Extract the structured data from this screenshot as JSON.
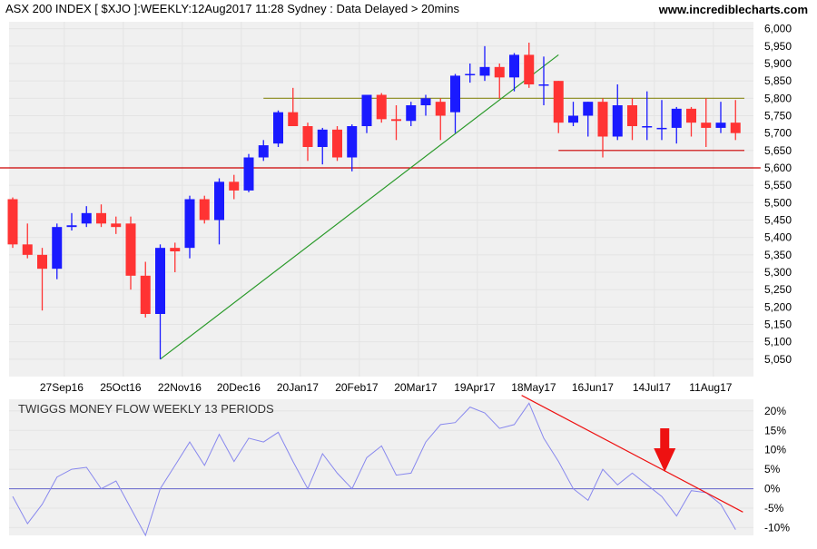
{
  "header": {
    "title": "ASX 200 INDEX [ $XJO ]:WEEKLY:12Aug2017 11:28 Sydney : Data Delayed > 20mins",
    "site": "www.incrediblecharts.com"
  },
  "colors": {
    "up": "#1a1aff",
    "down": "#ff3333",
    "grid": "#e4e4e4",
    "panel_bg": "#f0f0f0",
    "trend_green": "#2a9a2a",
    "support_red": "#cc0000",
    "resistance_olive": "#8a8a1a",
    "money_flow": "#8888ee",
    "arrow": "#ee1111"
  },
  "chart_data": [
    {
      "type": "candlestick",
      "title": "ASX 200 INDEX [ $XJO ]:WEEKLY:12Aug2017 11:28 Sydney : Data Delayed > 20mins",
      "ylim": [
        5000,
        6020
      ],
      "y_ticks": [
        "6,000",
        "5,950",
        "5,900",
        "5,850",
        "5,800",
        "5,750",
        "5,700",
        "5,650",
        "5,600",
        "5,550",
        "5,500",
        "5,450",
        "5,400",
        "5,350",
        "5,300",
        "5,250",
        "5,200",
        "5,150",
        "5,100",
        "5,050"
      ],
      "y_tick_values": [
        6000,
        5950,
        5900,
        5850,
        5800,
        5750,
        5700,
        5650,
        5600,
        5550,
        5500,
        5450,
        5400,
        5350,
        5300,
        5250,
        5200,
        5150,
        5100,
        5050
      ],
      "x_tick_labels": [
        "27Sep16",
        "25Oct16",
        "22Nov16",
        "20Dec16",
        "20Jan17",
        "20Feb17",
        "20Mar17",
        "19Apr17",
        "18May17",
        "16Jun17",
        "14Jul17",
        "11Aug17"
      ],
      "x_tick_index": [
        4,
        8,
        12,
        16,
        20,
        24,
        28,
        32,
        36,
        40,
        44,
        48
      ],
      "candles": [
        {
          "o": 5510,
          "h": 5515,
          "l": 5370,
          "c": 5380
        },
        {
          "o": 5380,
          "h": 5440,
          "l": 5340,
          "c": 5350
        },
        {
          "o": 5350,
          "h": 5370,
          "l": 5190,
          "c": 5310
        },
        {
          "o": 5310,
          "h": 5440,
          "l": 5280,
          "c": 5430
        },
        {
          "o": 5430,
          "h": 5470,
          "l": 5420,
          "c": 5435
        },
        {
          "o": 5440,
          "h": 5490,
          "l": 5430,
          "c": 5470
        },
        {
          "o": 5470,
          "h": 5495,
          "l": 5430,
          "c": 5440
        },
        {
          "o": 5440,
          "h": 5460,
          "l": 5410,
          "c": 5430
        },
        {
          "o": 5440,
          "h": 5460,
          "l": 5250,
          "c": 5290
        },
        {
          "o": 5290,
          "h": 5330,
          "l": 5170,
          "c": 5180
        },
        {
          "o": 5180,
          "h": 5380,
          "l": 5050,
          "c": 5370
        },
        {
          "o": 5370,
          "h": 5385,
          "l": 5300,
          "c": 5360
        },
        {
          "o": 5370,
          "h": 5520,
          "l": 5340,
          "c": 5510
        },
        {
          "o": 5510,
          "h": 5520,
          "l": 5440,
          "c": 5450
        },
        {
          "o": 5450,
          "h": 5570,
          "l": 5380,
          "c": 5560
        },
        {
          "o": 5560,
          "h": 5580,
          "l": 5510,
          "c": 5535
        },
        {
          "o": 5535,
          "h": 5640,
          "l": 5530,
          "c": 5630
        },
        {
          "o": 5630,
          "h": 5680,
          "l": 5620,
          "c": 5665
        },
        {
          "o": 5670,
          "h": 5765,
          "l": 5660,
          "c": 5760
        },
        {
          "o": 5760,
          "h": 5830,
          "l": 5720,
          "c": 5720
        },
        {
          "o": 5720,
          "h": 5730,
          "l": 5620,
          "c": 5660
        },
        {
          "o": 5660,
          "h": 5715,
          "l": 5610,
          "c": 5710
        },
        {
          "o": 5710,
          "h": 5720,
          "l": 5620,
          "c": 5630
        },
        {
          "o": 5630,
          "h": 5725,
          "l": 5590,
          "c": 5720
        },
        {
          "o": 5720,
          "h": 5810,
          "l": 5700,
          "c": 5810
        },
        {
          "o": 5810,
          "h": 5815,
          "l": 5730,
          "c": 5740
        },
        {
          "o": 5740,
          "h": 5780,
          "l": 5680,
          "c": 5735
        },
        {
          "o": 5735,
          "h": 5790,
          "l": 5720,
          "c": 5780
        },
        {
          "o": 5780,
          "h": 5810,
          "l": 5750,
          "c": 5800
        },
        {
          "o": 5790,
          "h": 5800,
          "l": 5680,
          "c": 5750
        },
        {
          "o": 5760,
          "h": 5870,
          "l": 5700,
          "c": 5865
        },
        {
          "o": 5870,
          "h": 5900,
          "l": 5845,
          "c": 5870
        },
        {
          "o": 5865,
          "h": 5950,
          "l": 5850,
          "c": 5890
        },
        {
          "o": 5890,
          "h": 5900,
          "l": 5800,
          "c": 5860
        },
        {
          "o": 5860,
          "h": 5930,
          "l": 5820,
          "c": 5925
        },
        {
          "o": 5925,
          "h": 5960,
          "l": 5830,
          "c": 5840
        },
        {
          "o": 5840,
          "h": 5920,
          "l": 5780,
          "c": 5840
        },
        {
          "o": 5850,
          "h": 5850,
          "l": 5700,
          "c": 5730
        },
        {
          "o": 5730,
          "h": 5790,
          "l": 5720,
          "c": 5750
        },
        {
          "o": 5750,
          "h": 5790,
          "l": 5690,
          "c": 5790
        },
        {
          "o": 5790,
          "h": 5800,
          "l": 5630,
          "c": 5690
        },
        {
          "o": 5690,
          "h": 5840,
          "l": 5680,
          "c": 5780
        },
        {
          "o": 5780,
          "h": 5800,
          "l": 5680,
          "c": 5720
        },
        {
          "o": 5720,
          "h": 5820,
          "l": 5680,
          "c": 5720
        },
        {
          "o": 5715,
          "h": 5795,
          "l": 5680,
          "c": 5715
        },
        {
          "o": 5715,
          "h": 5775,
          "l": 5670,
          "c": 5770
        },
        {
          "o": 5770,
          "h": 5775,
          "l": 5690,
          "c": 5730
        },
        {
          "o": 5730,
          "h": 5800,
          "l": 5660,
          "c": 5715
        },
        {
          "o": 5715,
          "h": 5790,
          "l": 5700,
          "c": 5730
        },
        {
          "o": 5730,
          "h": 5795,
          "l": 5680,
          "c": 5700
        }
      ],
      "lines": [
        {
          "name": "trend-line",
          "color": "#2a9a2a",
          "from": {
            "i": 10,
            "v": 5050
          },
          "to": {
            "i": 37,
            "v": 5925
          }
        },
        {
          "name": "resistance-line",
          "color": "#8a8a1a",
          "from": {
            "i": 17,
            "v": 5800
          },
          "to": {
            "i": 49.6,
            "v": 5800
          }
        },
        {
          "name": "support-line-5600",
          "color": "#cc0000",
          "from": {
            "i": -1,
            "v": 5600
          },
          "to": {
            "i": 50.7,
            "v": 5600
          }
        },
        {
          "name": "support-line-5650",
          "color": "#cc0000",
          "from": {
            "i": 37,
            "v": 5650
          },
          "to": {
            "i": 49.6,
            "v": 5650
          }
        }
      ]
    },
    {
      "type": "line",
      "title": "TWIGGS MONEY FLOW WEEKLY 13 PERIODS",
      "ylim": [
        -12,
        23
      ],
      "y_ticks": [
        "20%",
        "15%",
        "10%",
        "5%",
        "0%",
        "-5%",
        "-10%"
      ],
      "y_tick_values": [
        20,
        15,
        10,
        5,
        0,
        -5,
        -10
      ],
      "series": [
        {
          "values": [
            -2,
            -9,
            -4,
            3,
            5,
            5.5,
            0,
            2,
            -5,
            -12,
            0,
            6,
            12,
            6,
            14,
            7,
            13,
            12,
            14.5,
            7,
            0,
            9,
            4,
            0,
            8,
            11,
            3.5,
            4,
            12,
            16.5,
            17,
            21,
            19.5,
            15.5,
            16.5,
            22,
            13,
            7,
            0,
            -3,
            5,
            1,
            4,
            1,
            -2,
            -7,
            -0.5,
            -1,
            -4,
            -10.5
          ]
        }
      ],
      "lines": [
        {
          "name": "money-flow-trend-line",
          "color": "#ee1111",
          "from": {
            "i": 34.5,
            "v": 24
          },
          "to": {
            "i": 49.5,
            "v": -6
          }
        }
      ]
    }
  ]
}
